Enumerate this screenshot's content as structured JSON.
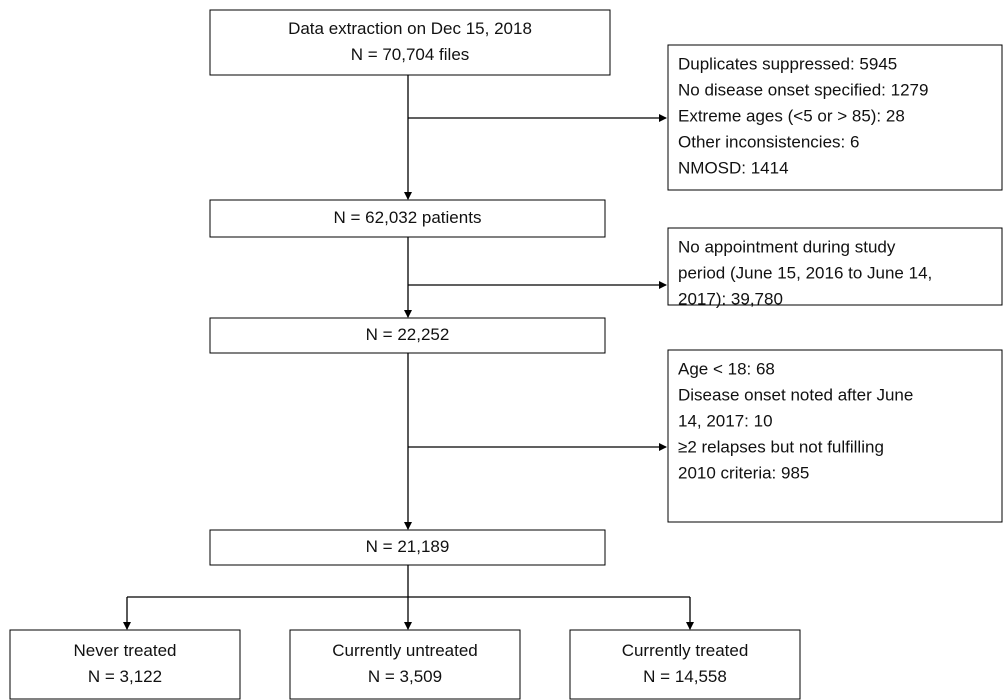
{
  "nodes": [
    {
      "lines": [
        "Data extraction on Dec 15, 2018",
        "N = 70,704 files"
      ]
    },
    {
      "lines": [
        "N = 62,032 patients"
      ]
    },
    {
      "lines": [
        "N = 22,252"
      ]
    },
    {
      "lines": [
        "N = 21,189"
      ]
    }
  ],
  "exclusions": [
    {
      "lines": [
        "Duplicates suppressed: 5945",
        "No disease onset specified: 1279",
        "Extreme ages (<5 or > 85): 28",
        "Other inconsistencies: 6",
        "NMOSD: 1414"
      ]
    },
    {
      "lines": [
        "No appointment during study",
        "period (June 15, 2016 to June 14,",
        "2017): 39,780"
      ]
    },
    {
      "lines": [
        "Age < 18: 68",
        "Disease onset noted after June",
        "14, 2017: 10",
        "≥2 relapses but not fulfilling",
        "2010 criteria: 985"
      ]
    }
  ],
  "outcomes": [
    {
      "lines": [
        "Never treated",
        "N = 3,122"
      ]
    },
    {
      "lines": [
        "Currently untreated",
        "N = 3,509"
      ]
    },
    {
      "lines": [
        "Currently treated",
        "N = 14,558"
      ]
    }
  ]
}
